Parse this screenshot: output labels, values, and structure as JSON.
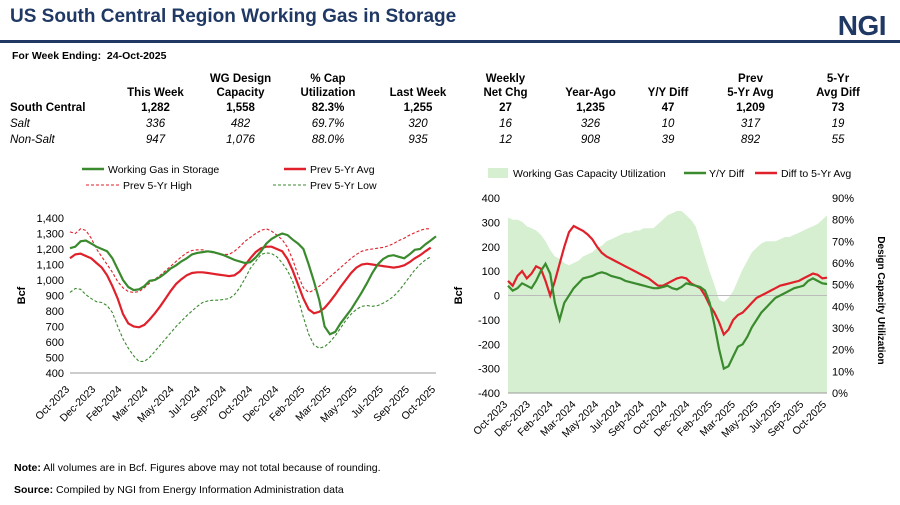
{
  "header": {
    "title": "US South Central Region Working Gas in Storage",
    "logo": "NGI",
    "week_label": "For Week Ending:",
    "week_date": "24-Oct-2025"
  },
  "table": {
    "headers": [
      "",
      "This Week",
      "WG Design Capacity",
      "% Cap Utilization",
      "Last Week",
      "Weekly Net Chg",
      "Year-Ago",
      "Y/Y Diff",
      "Prev 5-Yr Avg",
      "5-Yr Avg Diff"
    ],
    "header_lines": [
      [
        "",
        ""
      ],
      [
        "",
        "This Week"
      ],
      [
        "WG Design",
        "Capacity"
      ],
      [
        "% Cap",
        "Utilization"
      ],
      [
        "",
        "Last Week"
      ],
      [
        "Weekly",
        "Net Chg"
      ],
      [
        "",
        "Year-Ago"
      ],
      [
        "",
        "Y/Y Diff"
      ],
      [
        "Prev",
        "5-Yr Avg"
      ],
      [
        "5-Yr",
        "Avg Diff"
      ]
    ],
    "rows": [
      [
        "South Central",
        "1,282",
        "1,558",
        "82.3%",
        "1,255",
        "27",
        "1,235",
        "47",
        "1,209",
        "73"
      ],
      [
        "Salt",
        "336",
        "482",
        "69.7%",
        "320",
        "16",
        "326",
        "10",
        "317",
        "19"
      ],
      [
        "Non-Salt",
        "947",
        "1,076",
        "88.0%",
        "935",
        "12",
        "908",
        "39",
        "892",
        "55"
      ]
    ]
  },
  "footer": {
    "note_label": "Note:",
    "note": "All volumes  are in Bcf. Figures above may not total  because of rounding.",
    "source_label": "Source:",
    "source": "Compiled  by NGI from Energy Information  Administration data"
  },
  "chart_data": [
    {
      "type": "line",
      "ylabel": "Bcf",
      "ylim": [
        400,
        1400
      ],
      "yticks": [
        "1,400",
        "1,300",
        "1,200",
        "1,100",
        "1,000",
        "900",
        "800",
        "700",
        "600",
        "500",
        "400"
      ],
      "xlabels": [
        "Oct-2023",
        "Dec-2023",
        "Feb-2024",
        "Mar-2024",
        "May-2024",
        "Jul-2024",
        "Sep-2024",
        "Oct-2024",
        "Dec-2024",
        "Feb-2025",
        "Mar-2025",
        "May-2025",
        "Jul-2025",
        "Sep-2025",
        "Oct-2025"
      ],
      "legend_position": "top",
      "series": [
        {
          "name": "Working Gas in Storage",
          "color": "#3a8a2e",
          "dash": "",
          "width": 2.2,
          "values": [
            1205,
            1215,
            1250,
            1255,
            1235,
            1215,
            1200,
            1185,
            1140,
            1070,
            1000,
            955,
            935,
            940,
            960,
            995,
            1000,
            1020,
            1045,
            1075,
            1095,
            1120,
            1140,
            1165,
            1175,
            1180,
            1185,
            1180,
            1170,
            1160,
            1145,
            1130,
            1120,
            1110,
            1115,
            1145,
            1185,
            1235,
            1265,
            1285,
            1300,
            1290,
            1260,
            1235,
            1200,
            1100,
            990,
            870,
            700,
            650,
            665,
            720,
            765,
            810,
            865,
            920,
            980,
            1045,
            1100,
            1135,
            1155,
            1160,
            1150,
            1140,
            1165,
            1195,
            1200,
            1230,
            1255,
            1282
          ]
        },
        {
          "name": "Prev 5-Yr Avg",
          "color": "#e0202a",
          "dash": "",
          "width": 2.2,
          "values": [
            1140,
            1165,
            1170,
            1155,
            1140,
            1110,
            1080,
            1030,
            960,
            880,
            780,
            720,
            700,
            695,
            710,
            745,
            785,
            830,
            880,
            930,
            975,
            1005,
            1030,
            1045,
            1050,
            1050,
            1045,
            1040,
            1035,
            1030,
            1025,
            1030,
            1055,
            1095,
            1140,
            1180,
            1205,
            1215,
            1215,
            1200,
            1185,
            1135,
            1060,
            970,
            880,
            810,
            785,
            795,
            820,
            860,
            905,
            955,
            1000,
            1045,
            1080,
            1100,
            1105,
            1100,
            1095,
            1090,
            1085,
            1080,
            1085,
            1095,
            1115,
            1140,
            1160,
            1185,
            1209
          ]
        },
        {
          "name": "Prev 5-Yr High",
          "color": "#e0202a",
          "dash": "3,2",
          "width": 1.1,
          "values": [
            1310,
            1300,
            1330,
            1320,
            1270,
            1200,
            1150,
            1100,
            1050,
            990,
            950,
            925,
            920,
            925,
            950,
            980,
            1005,
            1030,
            1060,
            1090,
            1120,
            1150,
            1175,
            1190,
            1195,
            1195,
            1185,
            1175,
            1170,
            1165,
            1165,
            1185,
            1215,
            1250,
            1275,
            1300,
            1320,
            1330,
            1315,
            1290,
            1260,
            1210,
            1130,
            1030,
            950,
            920,
            935,
            960,
            990,
            1020,
            1050,
            1080,
            1110,
            1140,
            1165,
            1185,
            1195,
            1200,
            1205,
            1210,
            1220,
            1235,
            1255,
            1270,
            1290,
            1305,
            1320,
            1330,
            1330
          ]
        },
        {
          "name": "Prev 5-Yr Low",
          "color": "#3a8a2e",
          "dash": "3,2",
          "width": 1.1,
          "values": [
            920,
            945,
            940,
            905,
            880,
            860,
            855,
            835,
            790,
            700,
            620,
            560,
            510,
            475,
            475,
            500,
            540,
            580,
            620,
            660,
            700,
            735,
            770,
            800,
            830,
            855,
            865,
            870,
            870,
            875,
            880,
            905,
            950,
            1010,
            1075,
            1120,
            1165,
            1175,
            1170,
            1150,
            1110,
            1060,
            990,
            880,
            760,
            650,
            580,
            560,
            570,
            600,
            640,
            690,
            740,
            780,
            810,
            830,
            835,
            830,
            835,
            850,
            870,
            895,
            930,
            975,
            1020,
            1065,
            1100,
            1130,
            1150
          ]
        }
      ]
    },
    {
      "type": "line",
      "ylabel": "Bcf",
      "y2label": "Design Capacity Utilization",
      "ylim": [
        -400,
        400
      ],
      "y2lim": [
        0,
        90
      ],
      "yticks": [
        "400",
        "300",
        "200",
        "100",
        "0",
        "-100",
        "-200",
        "-300",
        "-400"
      ],
      "y2ticks": [
        "90%",
        "80%",
        "70%",
        "60%",
        "50%",
        "40%",
        "30%",
        "20%",
        "10%",
        "0%"
      ],
      "xlabels": [
        "Oct-2023",
        "Dec-2023",
        "Feb-2024",
        "Mar-2024",
        "May-2024",
        "Jul-2024",
        "Sep-2024",
        "Oct-2024",
        "Dec-2024",
        "Feb-2025",
        "Mar-2025",
        "May-2025",
        "Jul-2025",
        "Sep-2025",
        "Oct-2025"
      ],
      "legend_position": "top",
      "series": [
        {
          "name": "Working Gas Capacity Utilization",
          "color": "#d6efd0",
          "axis": "right",
          "kind": "area",
          "values": [
            81,
            80,
            80,
            79,
            77,
            76,
            75,
            73,
            70,
            66,
            63,
            62,
            60,
            59,
            60,
            61,
            63,
            64,
            65,
            67,
            68,
            70,
            71,
            72,
            73,
            74,
            74,
            75,
            75,
            76,
            76,
            76,
            78,
            80,
            82,
            83,
            84,
            84,
            82,
            80,
            77,
            70,
            63,
            56,
            50,
            43,
            42,
            44,
            47,
            52,
            57,
            61,
            65,
            67,
            69,
            70,
            70,
            70,
            71,
            72,
            72,
            73,
            74,
            75,
            76,
            77,
            78,
            80,
            82
          ]
        },
        {
          "name": "Y/Y Diff",
          "color": "#3a8a2e",
          "axis": "left",
          "width": 2.2,
          "values": [
            40,
            20,
            30,
            50,
            40,
            30,
            60,
            100,
            130,
            90,
            -30,
            -100,
            -30,
            0,
            30,
            50,
            70,
            75,
            80,
            90,
            95,
            90,
            80,
            75,
            70,
            60,
            55,
            50,
            45,
            40,
            35,
            30,
            30,
            35,
            40,
            30,
            25,
            35,
            50,
            45,
            40,
            35,
            20,
            -30,
            -120,
            -220,
            -300,
            -290,
            -250,
            -210,
            -200,
            -170,
            -130,
            -100,
            -70,
            -50,
            -30,
            -10,
            0,
            10,
            20,
            30,
            35,
            40,
            60,
            70,
            60,
            50,
            47
          ]
        },
        {
          "name": "Diff to 5-Yr Avg",
          "color": "#e0202a",
          "axis": "left",
          "width": 2.2,
          "values": [
            60,
            40,
            80,
            100,
            70,
            90,
            120,
            110,
            60,
            0,
            60,
            130,
            200,
            260,
            285,
            275,
            265,
            250,
            230,
            200,
            175,
            160,
            150,
            140,
            130,
            120,
            110,
            100,
            90,
            80,
            70,
            55,
            40,
            40,
            50,
            60,
            70,
            75,
            70,
            50,
            40,
            30,
            0,
            -40,
            -70,
            -110,
            -160,
            -140,
            -100,
            -80,
            -70,
            -50,
            -30,
            -10,
            0,
            10,
            20,
            30,
            40,
            45,
            50,
            55,
            60,
            70,
            80,
            90,
            85,
            70,
            73
          ]
        }
      ]
    }
  ]
}
